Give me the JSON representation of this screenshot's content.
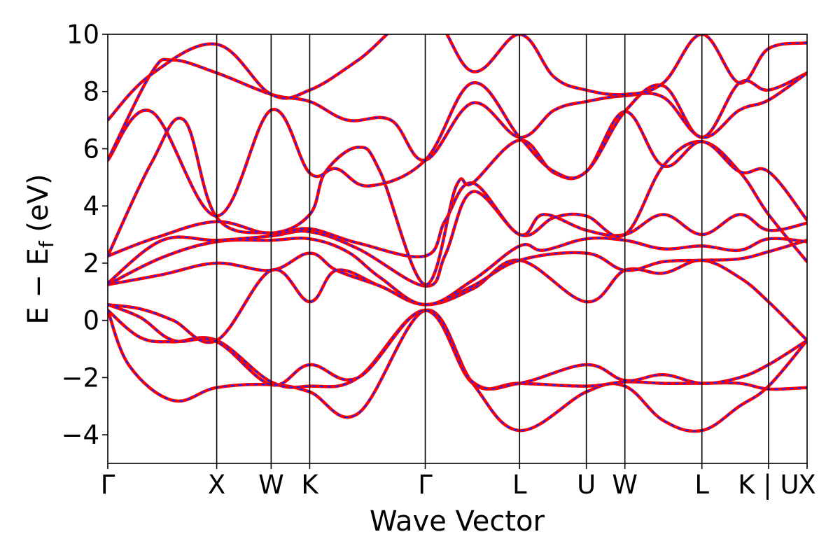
{
  "chart_data": {
    "type": "line",
    "xlabel": "Wave Vector",
    "ylabel_parts": {
      "main": "E − E",
      "sub": "f",
      "unit": " (eV)"
    },
    "ylim": [
      -5,
      10
    ],
    "yticks": [
      -4,
      -2,
      0,
      2,
      4,
      6,
      8,
      10
    ],
    "ytick_labels": [
      "−4",
      "−2",
      "0",
      "2",
      "4",
      "6",
      "8",
      "10"
    ],
    "high_symmetry_points": [
      {
        "label": "Γ",
        "k": 0.0
      },
      {
        "label": "X",
        "k": 1.0
      },
      {
        "label": "W",
        "k": 1.5
      },
      {
        "label": "K",
        "k": 1.854
      },
      {
        "label": "Γ",
        "k": 2.915
      },
      {
        "label": "L",
        "k": 3.781
      },
      {
        "label": "U",
        "k": 4.394
      },
      {
        "label": "W",
        "k": 4.748
      },
      {
        "label": "L",
        "k": 5.455
      },
      {
        "label": "K | U",
        "k": 6.067
      },
      {
        "label": "X",
        "k": 6.421
      }
    ],
    "series_styles": [
      {
        "color": "#ff0000",
        "style": "solid"
      },
      {
        "color": "#1f1fff",
        "style": "dashed"
      }
    ],
    "bands": [
      {
        "k": [
          0,
          0.2,
          0.6,
          1.0,
          1.5,
          1.854,
          2.3,
          2.915,
          3.35,
          3.781,
          4.394,
          4.748,
          5.1,
          5.455,
          5.8,
          6.067,
          6.421
        ],
        "e": [
          0.35,
          -1.6,
          -2.8,
          -2.35,
          -2.25,
          -2.5,
          -3.25,
          0.35,
          -2.2,
          -3.85,
          -2.5,
          -2.3,
          -3.5,
          -3.85,
          -3.0,
          -2.3,
          -0.7
        ]
      },
      {
        "k": [
          0,
          0.3,
          0.6,
          1.0,
          1.5,
          1.854,
          2.3,
          2.915,
          3.35,
          3.781,
          4.394,
          4.748,
          5.1,
          5.455,
          5.8,
          6.067,
          6.421
        ],
        "e": [
          0.35,
          -0.6,
          -0.75,
          -0.7,
          -2.15,
          -2.3,
          -2.0,
          0.35,
          -2.2,
          -2.2,
          -2.3,
          -2.15,
          -2.2,
          -2.2,
          -2.2,
          -2.4,
          -2.35
        ]
      },
      {
        "k": [
          0,
          0.3,
          0.6,
          1.0,
          1.5,
          1.854,
          2.3,
          2.915,
          3.35,
          3.781,
          4.394,
          4.748,
          5.1,
          5.455,
          5.8,
          6.067,
          6.421
        ],
        "e": [
          0.55,
          0.1,
          -0.7,
          -0.75,
          -2.25,
          -1.55,
          -2.0,
          0.35,
          -2.15,
          -2.2,
          -1.55,
          -2.1,
          -1.9,
          -2.2,
          -2.0,
          -1.55,
          -0.7
        ]
      },
      {
        "k": [
          0,
          0.3,
          0.6,
          1.0,
          1.5,
          1.854,
          2.1,
          2.5,
          2.915,
          3.35,
          3.781,
          4.394,
          4.748,
          5.1,
          5.455,
          5.8,
          6.067,
          6.421
        ],
        "e": [
          0.55,
          0.4,
          0.0,
          -0.7,
          1.75,
          0.65,
          1.75,
          1.2,
          0.55,
          1.1,
          2.1,
          0.65,
          1.75,
          1.65,
          2.1,
          1.5,
          0.65,
          -0.7
        ]
      },
      {
        "k": [
          0,
          0.5,
          1.0,
          1.5,
          1.854,
          2.1,
          2.5,
          2.915,
          3.35,
          3.781,
          4.394,
          4.748,
          5.1,
          5.455,
          5.8,
          6.067,
          6.421
        ],
        "e": [
          1.25,
          1.6,
          2.0,
          1.75,
          2.35,
          1.75,
          1.2,
          0.55,
          1.2,
          2.1,
          2.35,
          1.75,
          2.05,
          2.1,
          2.15,
          2.4,
          2.8
        ]
      },
      {
        "k": [
          0,
          0.5,
          1.0,
          1.5,
          1.854,
          2.2,
          2.5,
          2.915,
          3.35,
          3.781,
          4.0,
          4.394,
          4.748,
          5.1,
          5.455,
          5.8,
          6.067,
          6.421
        ],
        "e": [
          1.25,
          2.2,
          2.75,
          2.8,
          2.85,
          2.4,
          1.5,
          0.55,
          1.4,
          2.6,
          2.45,
          2.85,
          2.8,
          2.5,
          2.6,
          2.45,
          2.85,
          2.75
        ]
      },
      {
        "k": [
          0,
          0.5,
          1.0,
          1.5,
          1.854,
          2.3,
          2.915,
          3.1,
          3.35,
          3.781,
          4.0,
          4.394,
          4.748,
          5.1,
          5.455,
          5.8,
          6.067,
          6.421
        ],
        "e": [
          1.3,
          2.8,
          2.8,
          2.95,
          3.1,
          2.5,
          1.2,
          2.3,
          4.5,
          3.0,
          3.7,
          3.15,
          3.0,
          3.7,
          3.0,
          3.7,
          3.15,
          3.4
        ]
      },
      {
        "k": [
          0,
          0.4,
          0.7,
          1.0,
          1.5,
          1.854,
          2.3,
          2.915,
          3.1,
          3.35,
          3.781,
          4.1,
          4.394,
          4.748,
          5.1,
          5.455,
          5.8,
          6.067,
          6.421
        ],
        "e": [
          2.25,
          5.5,
          7.0,
          3.6,
          3.05,
          3.2,
          2.7,
          2.25,
          3.5,
          4.8,
          3.0,
          3.6,
          3.65,
          3.0,
          5.4,
          6.25,
          5.2,
          3.7,
          2.05
        ]
      },
      {
        "k": [
          0,
          0.45,
          1.0,
          1.5,
          1.854,
          2.0,
          2.3,
          2.5,
          2.915,
          3.2,
          3.35,
          3.781,
          4.1,
          4.394,
          4.748,
          5.1,
          5.455,
          5.8,
          6.067,
          6.421
        ],
        "e": [
          2.25,
          2.9,
          3.45,
          3.05,
          3.7,
          5.2,
          6.05,
          5.2,
          1.25,
          4.7,
          4.8,
          6.3,
          5.15,
          5.2,
          7.3,
          5.4,
          6.25,
          5.2,
          5.2,
          3.5
        ]
      },
      {
        "k": [
          0,
          0.4,
          1.0,
          1.5,
          1.854,
          2.1,
          2.4,
          2.915,
          3.35,
          3.781,
          4.1,
          4.394,
          4.748,
          5.1,
          5.455,
          5.8,
          6.067,
          6.421
        ],
        "e": [
          5.6,
          7.3,
          3.65,
          7.35,
          5.15,
          5.3,
          4.7,
          5.6,
          8.3,
          6.4,
          5.2,
          5.2,
          7.3,
          8.2,
          6.4,
          8.3,
          8.05,
          8.65
        ]
      },
      {
        "k": [
          0,
          0.4,
          0.6,
          1.0,
          1.5,
          1.854,
          2.2,
          2.6,
          2.915,
          3.35,
          3.781,
          4.1,
          4.394,
          4.748,
          5.1,
          5.455,
          5.8,
          6.067,
          6.421
        ],
        "e": [
          5.6,
          8.65,
          9.1,
          8.65,
          7.9,
          7.65,
          7.0,
          7.0,
          5.6,
          7.6,
          6.4,
          7.35,
          7.65,
          7.85,
          7.8,
          6.4,
          7.35,
          7.7,
          8.65
        ]
      },
      {
        "k": [
          0,
          0.4,
          1.0,
          1.5,
          1.854,
          2.3,
          2.915,
          3.35,
          3.781,
          4.1,
          4.394,
          4.748,
          5.1,
          5.455,
          5.8,
          6.067,
          6.421
        ],
        "e": [
          7.0,
          8.6,
          9.65,
          7.9,
          8.05,
          9.1,
          10.8,
          8.7,
          10.0,
          8.5,
          8.05,
          7.9,
          8.3,
          10.0,
          8.3,
          9.5,
          9.7
        ]
      }
    ]
  }
}
